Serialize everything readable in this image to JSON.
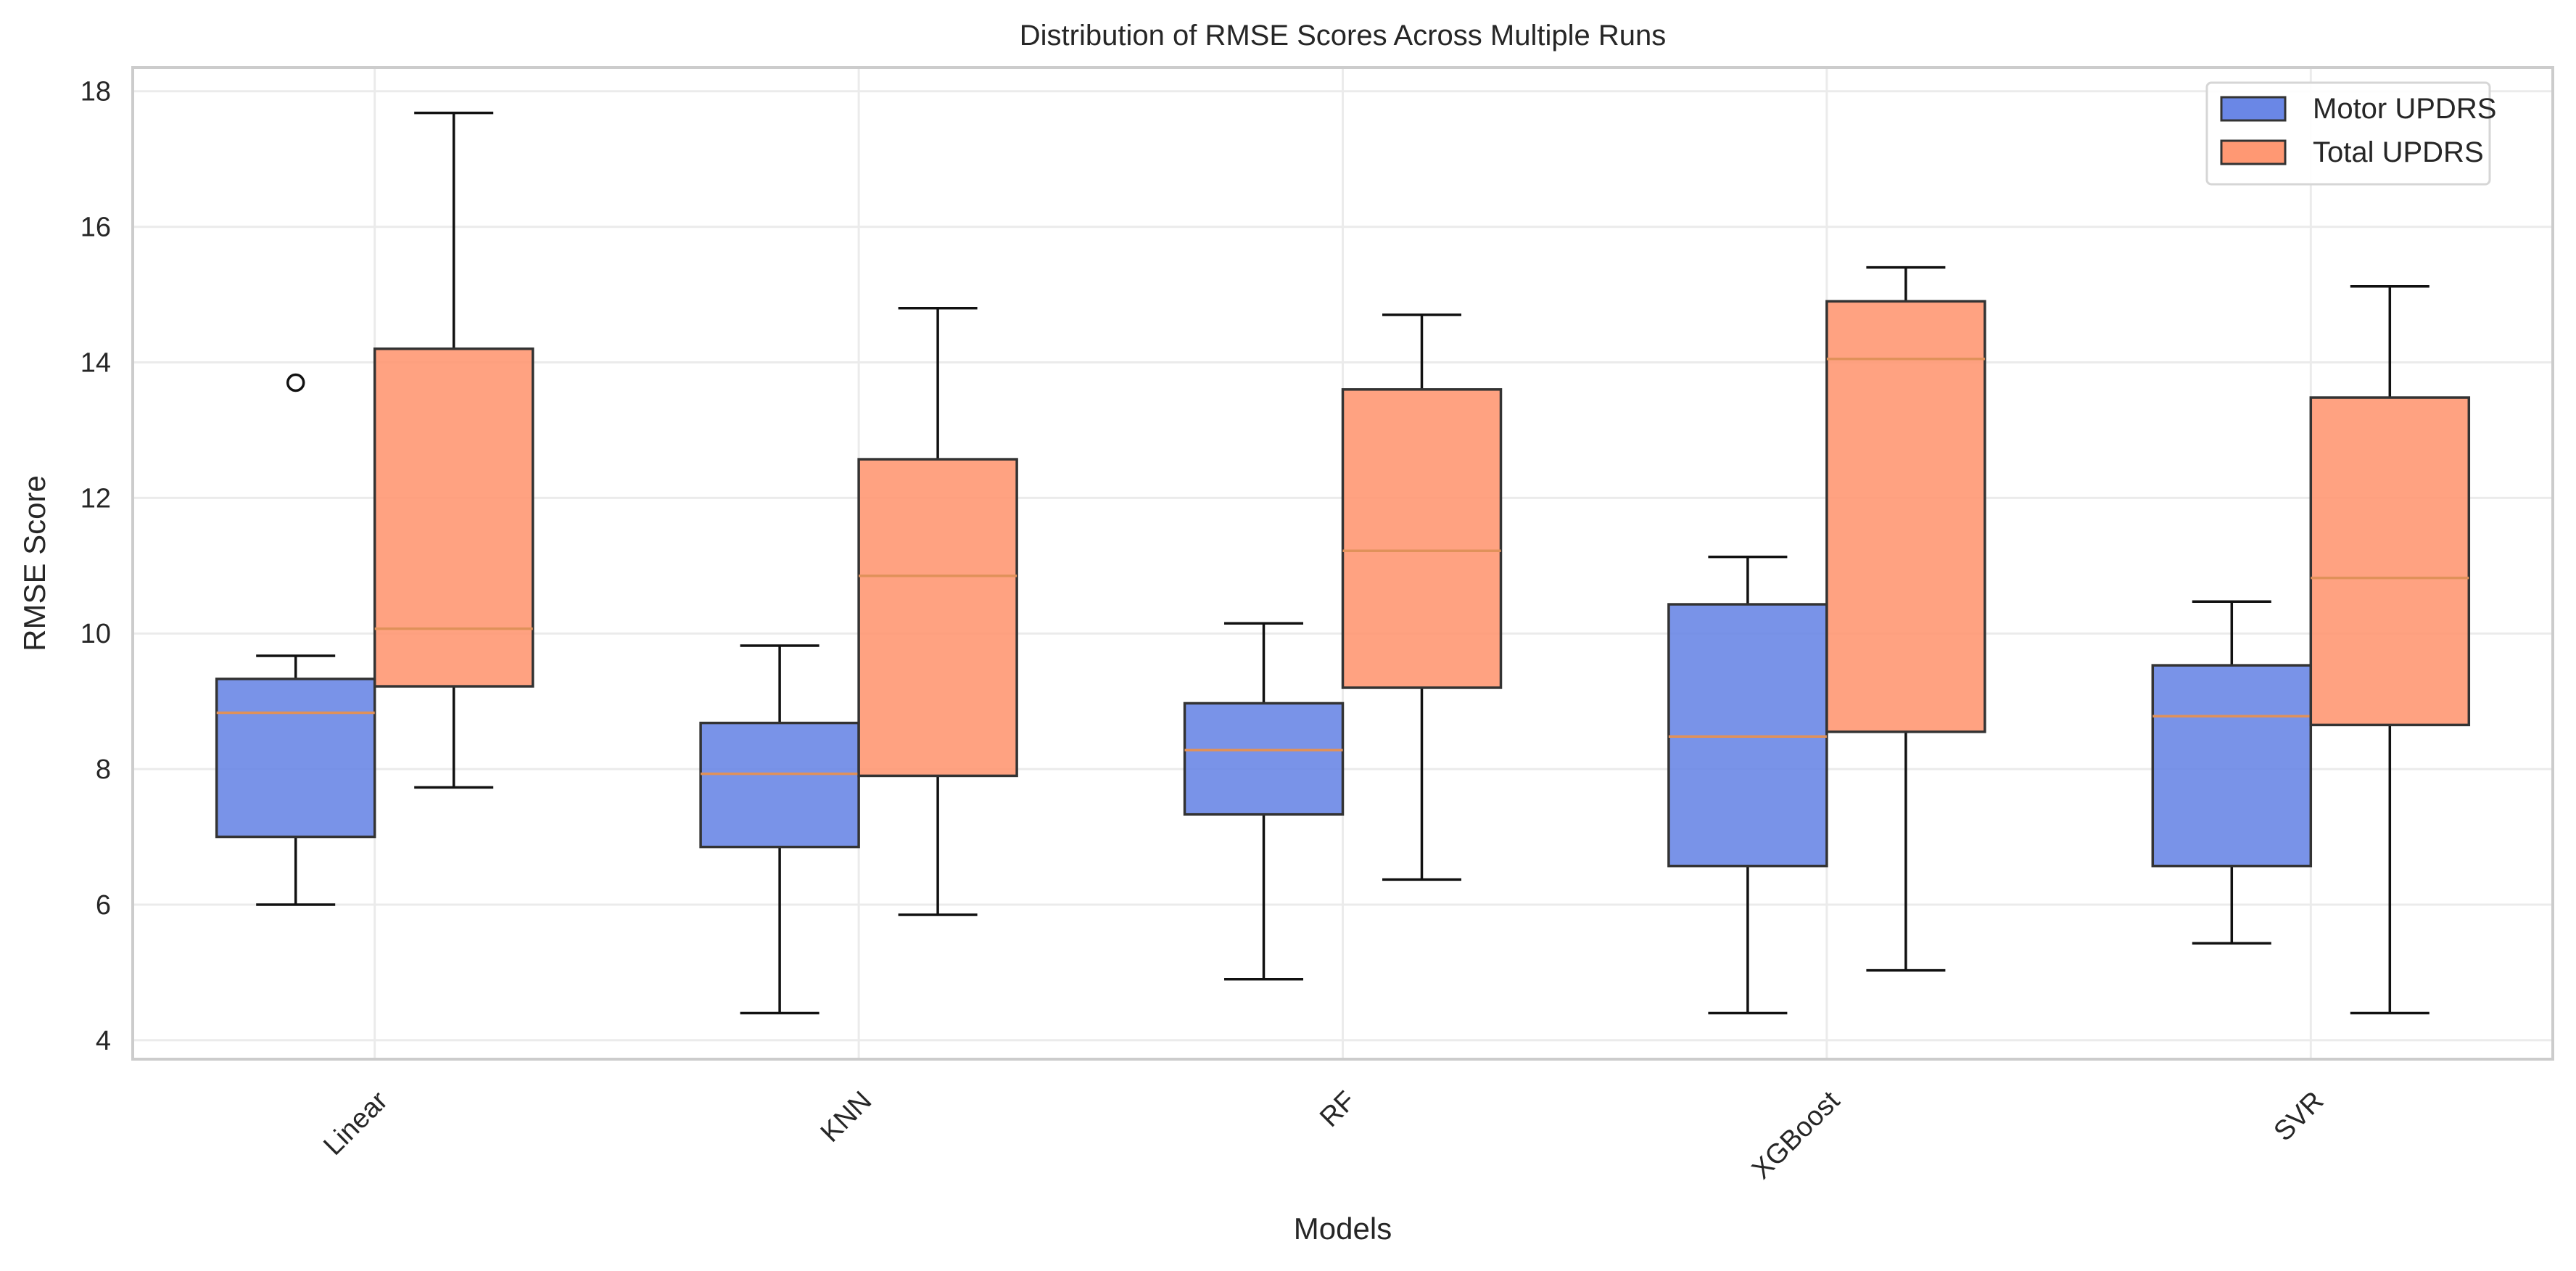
{
  "chart_data": {
    "type": "box",
    "title": "Distribution of RMSE Scores Across Multiple Runs",
    "xlabel": "Models",
    "ylabel": "RMSE Score",
    "categories": [
      "Linear",
      "KNN",
      "RF",
      "XGBoost",
      "SVR"
    ],
    "ylim": [
      3.72,
      18.35
    ],
    "yticks": [
      4,
      6,
      8,
      10,
      12,
      14,
      16,
      18
    ],
    "grid": true,
    "legend_position": "top-right",
    "series": [
      {
        "name": "Motor UPDRS",
        "color": "#6a87e6",
        "boxes": [
          {
            "whisker_low": 6.0,
            "q1": 7.0,
            "median": 8.83,
            "q3": 9.33,
            "whisker_high": 9.67,
            "outliers": [
              13.7
            ]
          },
          {
            "whisker_low": 4.4,
            "q1": 6.85,
            "median": 7.93,
            "q3": 8.68,
            "whisker_high": 9.82,
            "outliers": []
          },
          {
            "whisker_low": 4.9,
            "q1": 7.33,
            "median": 8.28,
            "q3": 8.97,
            "whisker_high": 10.15,
            "outliers": []
          },
          {
            "whisker_low": 4.4,
            "q1": 6.57,
            "median": 8.48,
            "q3": 10.43,
            "whisker_high": 11.13,
            "outliers": []
          },
          {
            "whisker_low": 5.43,
            "q1": 6.57,
            "median": 8.78,
            "q3": 9.53,
            "whisker_high": 10.47,
            "outliers": []
          }
        ]
      },
      {
        "name": "Total UPDRS",
        "color": "#ff9873",
        "boxes": [
          {
            "whisker_low": 7.73,
            "q1": 9.22,
            "median": 10.07,
            "q3": 14.2,
            "whisker_high": 17.68,
            "outliers": []
          },
          {
            "whisker_low": 5.85,
            "q1": 7.9,
            "median": 10.85,
            "q3": 12.57,
            "whisker_high": 14.8,
            "outliers": []
          },
          {
            "whisker_low": 6.37,
            "q1": 9.2,
            "median": 11.22,
            "q3": 13.6,
            "whisker_high": 14.7,
            "outliers": []
          },
          {
            "whisker_low": 5.03,
            "q1": 8.55,
            "median": 14.05,
            "q3": 14.9,
            "whisker_high": 15.4,
            "outliers": []
          },
          {
            "whisker_low": 4.4,
            "q1": 8.65,
            "median": 10.82,
            "q3": 13.48,
            "whisker_high": 15.12,
            "outliers": []
          }
        ]
      }
    ],
    "style": {
      "median_color": "#e0915a",
      "box_edge": "#333333",
      "whisker_color": "#111111",
      "grid_color": "#ebebeb",
      "frame_color": "#cccccc"
    }
  }
}
